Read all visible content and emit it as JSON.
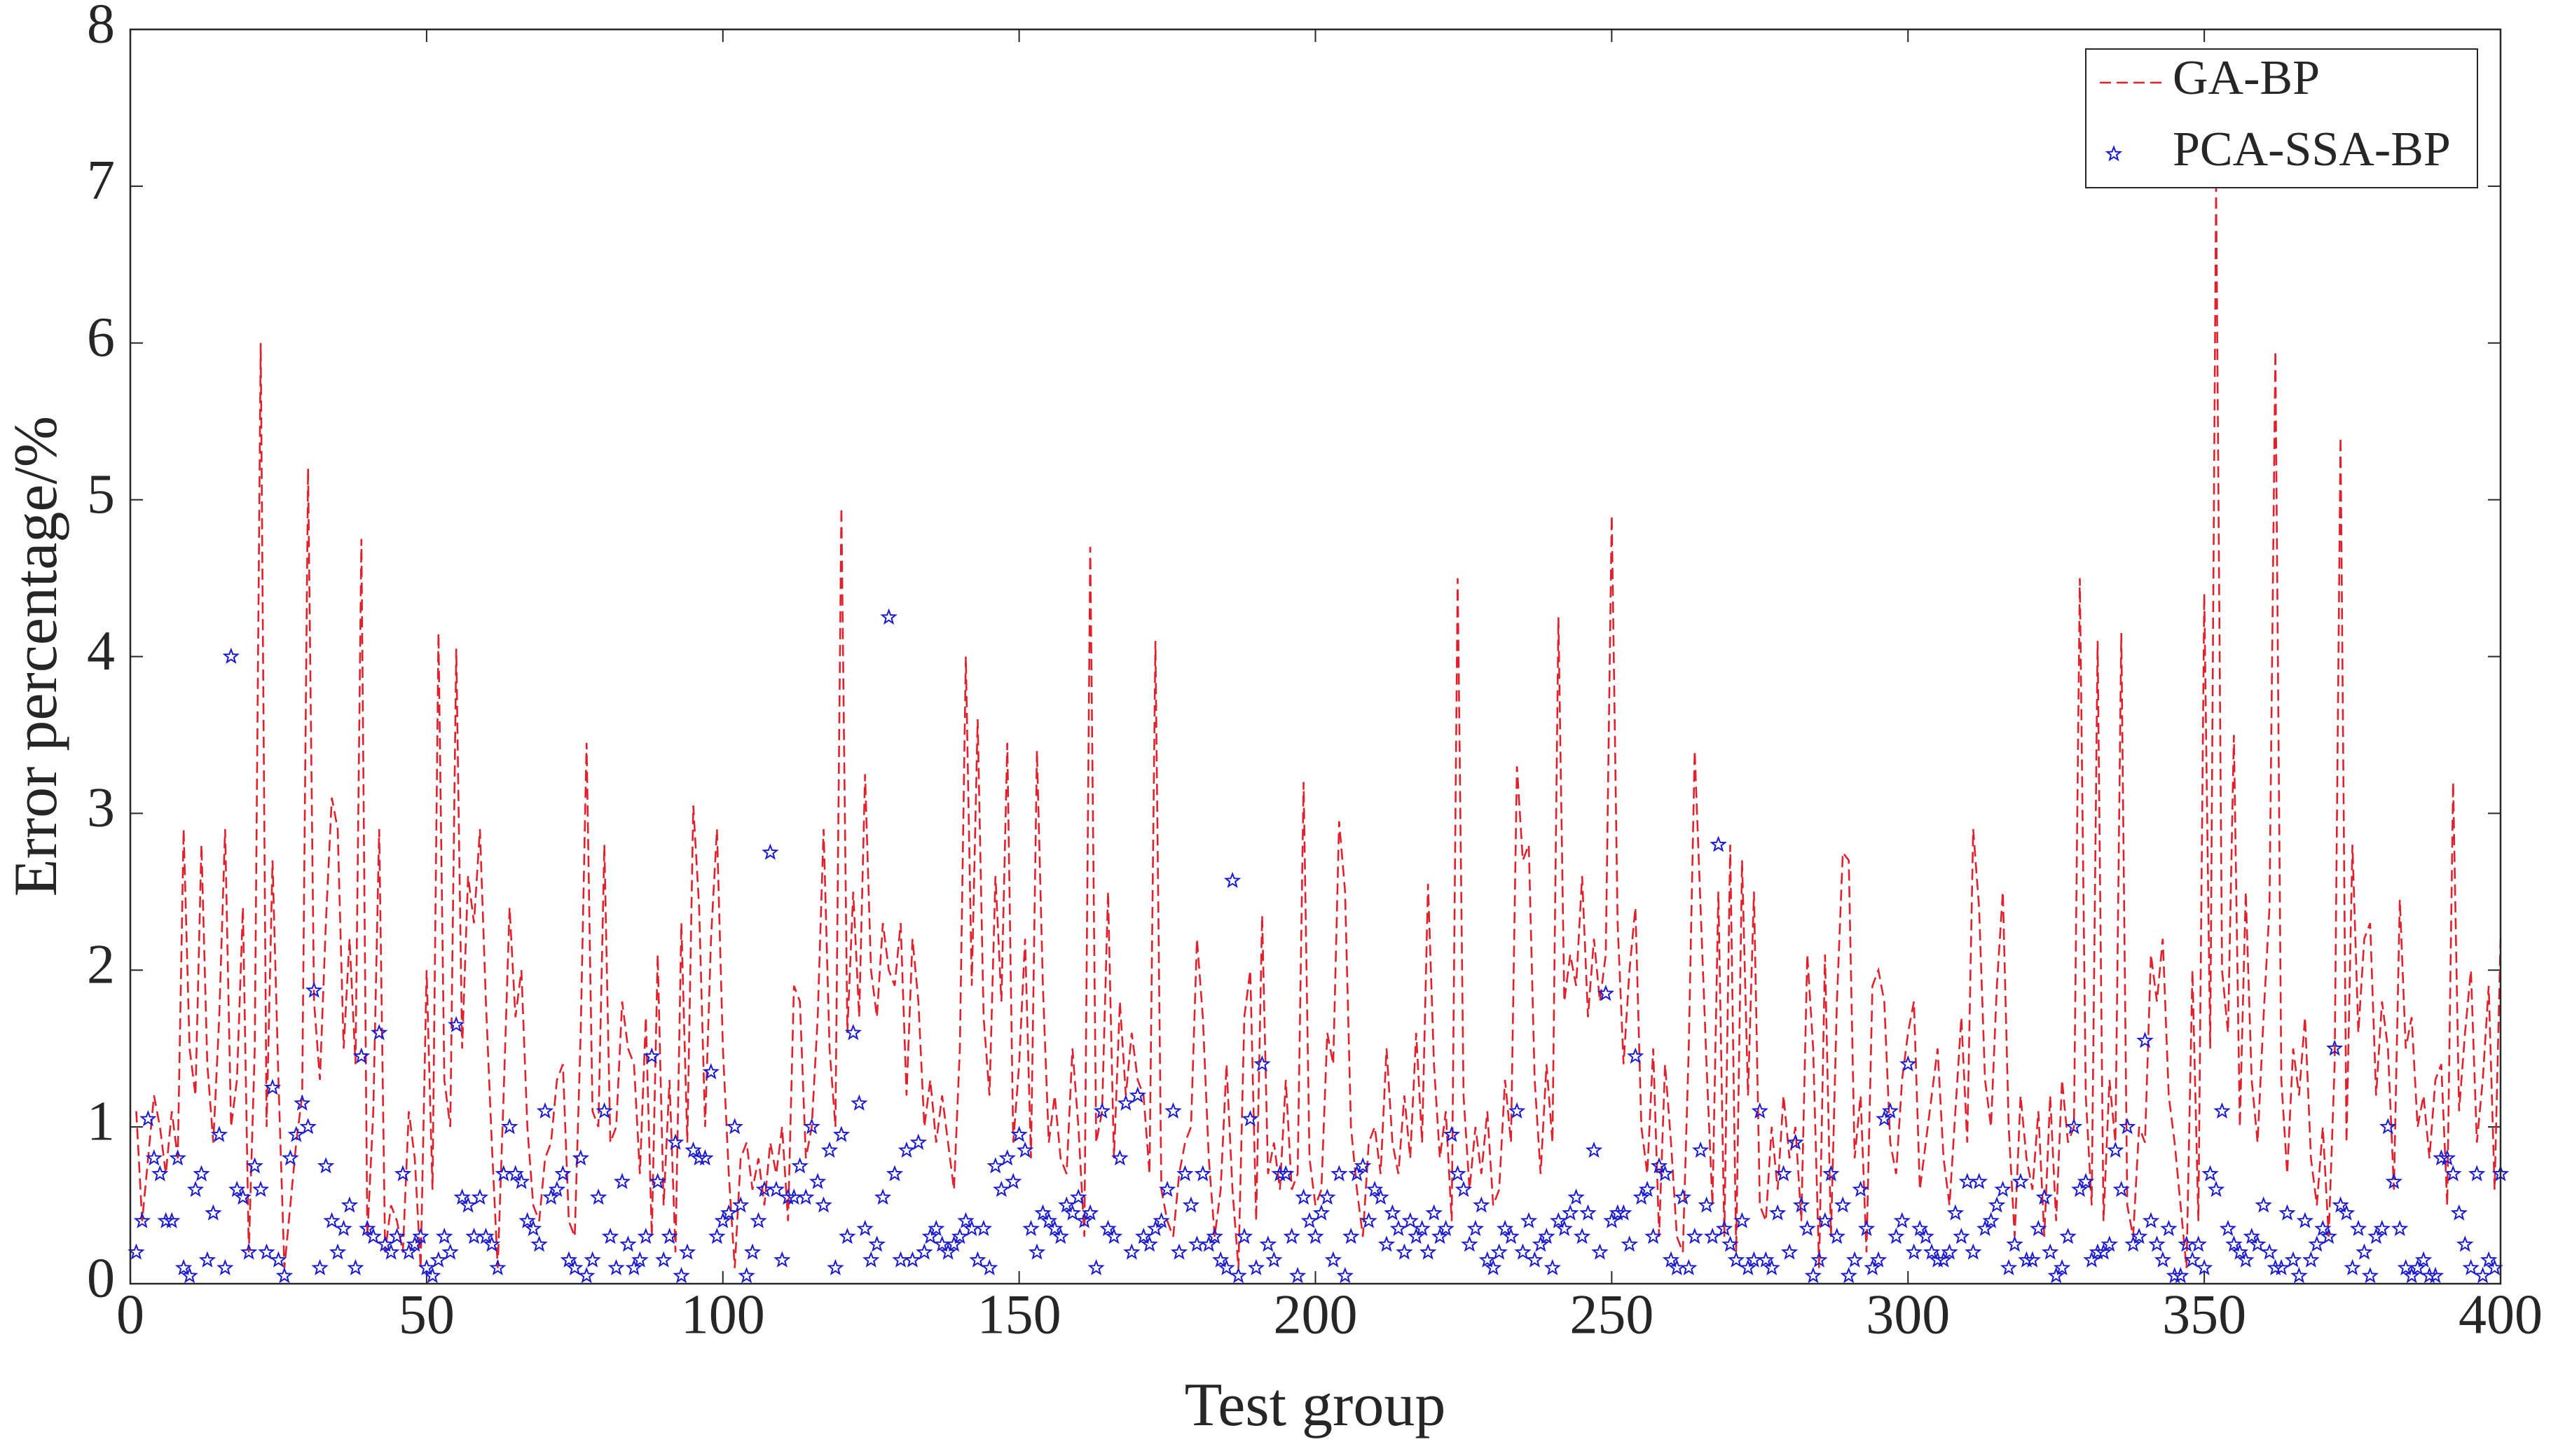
{
  "chart_data": {
    "type": "line",
    "xlabel": "Test group",
    "ylabel": "Error percentage/%",
    "xlim": [
      0,
      400
    ],
    "xticks": [
      0,
      50,
      100,
      150,
      200,
      250,
      300,
      350,
      400
    ],
    "ylim": [
      0,
      8
    ],
    "yticks": [
      0,
      1,
      2,
      3,
      4,
      5,
      6,
      7,
      8
    ],
    "grid": false,
    "legend": "upper right",
    "x": [
      1,
      2,
      3,
      4,
      5,
      6,
      7,
      8,
      9,
      10,
      11,
      12,
      13,
      14,
      15,
      16,
      17,
      18,
      19,
      20,
      21,
      22,
      23,
      24,
      25,
      26,
      27,
      28,
      29,
      30,
      31,
      32,
      33,
      34,
      35,
      36,
      37,
      38,
      39,
      40,
      41,
      42,
      43,
      44,
      45,
      46,
      47,
      48,
      49,
      50,
      51,
      52,
      53,
      54,
      55,
      56,
      57,
      58,
      59,
      60,
      61,
      62,
      63,
      64,
      65,
      66,
      67,
      68,
      69,
      70,
      71,
      72,
      73,
      74,
      75,
      76,
      77,
      78,
      79,
      80,
      81,
      82,
      83,
      84,
      85,
      86,
      87,
      88,
      89,
      90,
      91,
      92,
      93,
      94,
      95,
      96,
      97,
      98,
      99,
      100,
      101,
      102,
      103,
      104,
      105,
      106,
      107,
      108,
      109,
      110,
      111,
      112,
      113,
      114,
      115,
      116,
      117,
      118,
      119,
      120,
      121,
      122,
      123,
      124,
      125,
      126,
      127,
      128,
      129,
      130,
      131,
      132,
      133,
      134,
      135,
      136,
      137,
      138,
      139,
      140,
      141,
      142,
      143,
      144,
      145,
      146,
      147,
      148,
      149,
      150,
      151,
      152,
      153,
      154,
      155,
      156,
      157,
      158,
      159,
      160,
      161,
      162,
      163,
      164,
      165,
      166,
      167,
      168,
      169,
      170,
      171,
      172,
      173,
      174,
      175,
      176,
      177,
      178,
      179,
      180,
      181,
      182,
      183,
      184,
      185,
      186,
      187,
      188,
      189,
      190,
      191,
      192,
      193,
      194,
      195,
      196,
      197,
      198,
      199,
      200,
      201,
      202,
      203,
      204,
      205,
      206,
      207,
      208,
      209,
      210,
      211,
      212,
      213,
      214,
      215,
      216,
      217,
      218,
      219,
      220,
      221,
      222,
      223,
      224,
      225,
      226,
      227,
      228,
      229,
      230,
      231,
      232,
      233,
      234,
      235,
      236,
      237,
      238,
      239,
      240,
      241,
      242,
      243,
      244,
      245,
      246,
      247,
      248,
      249,
      250,
      251,
      252,
      253,
      254,
      255,
      256,
      257,
      258,
      259,
      260,
      261,
      262,
      263,
      264,
      265,
      266,
      267,
      268,
      269,
      270,
      271,
      272,
      273,
      274,
      275,
      276,
      277,
      278,
      279,
      280,
      281,
      282,
      283,
      284,
      285,
      286,
      287,
      288,
      289,
      290,
      291,
      292,
      293,
      294,
      295,
      296,
      297,
      298,
      299,
      300,
      301,
      302,
      303,
      304,
      305,
      306,
      307,
      308,
      309,
      310,
      311,
      312,
      313,
      314,
      315,
      316,
      317,
      318,
      319,
      320,
      321,
      322,
      323,
      324,
      325,
      326,
      327,
      328,
      329,
      330,
      331,
      332,
      333,
      334,
      335,
      336,
      337,
      338,
      339,
      340,
      341,
      342,
      343,
      344,
      345,
      346,
      347,
      348,
      349,
      350,
      351,
      352,
      353,
      354,
      355,
      356,
      357,
      358,
      359,
      360,
      361,
      362,
      363,
      364,
      365,
      366,
      367,
      368,
      369,
      370,
      371,
      372,
      373,
      374,
      375,
      376,
      377,
      378,
      379,
      380,
      381,
      382,
      383,
      384,
      385,
      386,
      387,
      388,
      389,
      390,
      391,
      392,
      393,
      394,
      395,
      396,
      397,
      398,
      399,
      400
    ],
    "series": [
      {
        "name": "GA-BP",
        "color": "#e0202a",
        "linestyle": "dashed",
        "marker": "none",
        "values": [
          1.1,
          0.4,
          0.8,
          1.2,
          1.0,
          0.7,
          1.1,
          0.8,
          2.9,
          1.5,
          1.2,
          2.8,
          1.4,
          0.9,
          1.7,
          2.9,
          1.0,
          1.3,
          2.4,
          0.2,
          1.5,
          6.0,
          1.0,
          2.7,
          1.3,
          0.1,
          0.5,
          0.9,
          1.2,
          5.2,
          1.8,
          1.3,
          2.3,
          3.1,
          2.9,
          1.5,
          2.2,
          1.4,
          4.75,
          0.3,
          1.1,
          2.9,
          0.2,
          0.5,
          0.4,
          0.2,
          1.1,
          0.8,
          0.1,
          2.0,
          0.6,
          4.15,
          1.3,
          1.0,
          4.05,
          1.5,
          2.6,
          2.3,
          2.9,
          1.8,
          0.9,
          0.1,
          1.2,
          2.4,
          1.7,
          2.0,
          1.0,
          0.5,
          0.4,
          0.8,
          0.9,
          1.3,
          1.4,
          0.4,
          0.3,
          1.6,
          3.45,
          1.1,
          1.0,
          2.8,
          0.9,
          1.0,
          1.8,
          1.5,
          1.4,
          0.7,
          1.7,
          0.3,
          2.1,
          0.5,
          1.3,
          0.2,
          2.3,
          0.9,
          3.05,
          2.4,
          1.0,
          2.2,
          2.9,
          1.5,
          0.7,
          0.1,
          0.8,
          0.9,
          0.6,
          0.8,
          0.5,
          0.9,
          0.7,
          1.0,
          0.4,
          1.9,
          1.8,
          0.8,
          1.0,
          1.7,
          2.9,
          1.5,
          1.0,
          4.95,
          1.6,
          2.5,
          1.7,
          3.25,
          2.0,
          1.7,
          2.3,
          2.0,
          1.9,
          2.3,
          1.2,
          2.2,
          1.8,
          1.0,
          1.3,
          0.9,
          1.2,
          0.9,
          0.6,
          1.5,
          4.0,
          1.9,
          3.6,
          1.7,
          1.2,
          2.6,
          1.8,
          3.45,
          0.9,
          1.4,
          2.2,
          0.8,
          3.4,
          1.9,
          0.9,
          1.2,
          0.8,
          0.7,
          1.5,
          1.0,
          0.3,
          4.7,
          0.9,
          1.1,
          2.5,
          0.8,
          1.8,
          1.2,
          1.6,
          1.3,
          1.2,
          0.7,
          4.1,
          0.6,
          0.4,
          0.3,
          0.7,
          0.9,
          1.0,
          2.2,
          1.7,
          0.8,
          0.3,
          0.6,
          1.4,
          0.6,
          0.1,
          1.7,
          2.0,
          0.4,
          2.35,
          0.7,
          0.9,
          0.6,
          1.3,
          0.6,
          0.7,
          3.2,
          0.8,
          0.5,
          0.6,
          1.6,
          1.4,
          2.95,
          2.5,
          1.0,
          0.6,
          0.3,
          0.9,
          1.0,
          0.7,
          1.5,
          0.9,
          0.7,
          1.2,
          0.8,
          1.6,
          0.9,
          2.55,
          1.4,
          0.8,
          1.1,
          0.4,
          4.5,
          1.2,
          0.6,
          1.0,
          0.7,
          1.1,
          0.5,
          0.6,
          1.3,
          0.9,
          3.3,
          2.7,
          2.8,
          1.3,
          0.7,
          1.4,
          0.9,
          4.25,
          1.8,
          2.1,
          1.9,
          2.6,
          1.7,
          2.2,
          1.8,
          2.1,
          4.9,
          2.3,
          1.4,
          2.0,
          2.4,
          1.0,
          0.7,
          1.5,
          0.3,
          1.4,
          0.9,
          0.3,
          0.2,
          1.5,
          3.4,
          2.4,
          1.4,
          0.5,
          2.5,
          0.3,
          2.8,
          0.2,
          2.7,
          1.2,
          2.5,
          0.5,
          0.4,
          1.0,
          0.6,
          1.2,
          0.8,
          1.0,
          0.4,
          2.1,
          1.5,
          0.1,
          2.1,
          0.3,
          1.8,
          2.75,
          2.7,
          0.8,
          1.2,
          0.2,
          1.9,
          2.0,
          1.8,
          0.9,
          0.7,
          1.3,
          1.6,
          1.8,
          0.6,
          0.9,
          1.2,
          1.5,
          0.8,
          0.5,
          1.1,
          1.7,
          0.9,
          2.9,
          2.4,
          1.3,
          1.0,
          1.9,
          2.5,
          1.0,
          0.3,
          1.2,
          0.8,
          0.6,
          1.1,
          0.3,
          1.2,
          0.4,
          1.3,
          0.9,
          1.0,
          4.5,
          1.2,
          0.5,
          4.1,
          0.4,
          1.3,
          0.9,
          4.15,
          0.5,
          0.3,
          1.0,
          0.9,
          2.1,
          1.8,
          2.2,
          1.2,
          0.9,
          0.5,
          0.1,
          2.0,
          0.4,
          4.4,
          1.5,
          7.0,
          2.0,
          1.6,
          3.5,
          1.0,
          2.5,
          1.3,
          0.9,
          1.7,
          2.4,
          5.95,
          1.3,
          0.7,
          1.5,
          1.2,
          1.7,
          0.8,
          0.5,
          1.0,
          0.3,
          1.4,
          5.4,
          0.9,
          2.8,
          1.6,
          2.2,
          2.3,
          1.2,
          1.8,
          1.5,
          0.6,
          2.45,
          1.5,
          1.7,
          1.0,
          1.2,
          0.8,
          1.3,
          1.4,
          0.5,
          3.2,
          1.1,
          1.6,
          2.0,
          0.9,
          1.3,
          1.9,
          0.6,
          2.2
        ]
      },
      {
        "name": "PCA-SSA-BP",
        "color": "#1a1ad0",
        "linestyle": "none",
        "marker": "star",
        "values": [
          0.2,
          0.4,
          1.05,
          0.8,
          0.7,
          0.4,
          0.4,
          0.8,
          0.1,
          0.05,
          0.6,
          0.7,
          0.15,
          0.45,
          0.95,
          0.1,
          4.0,
          0.6,
          0.55,
          0.2,
          0.75,
          0.6,
          0.2,
          1.25,
          0.15,
          0.05,
          0.8,
          0.95,
          1.15,
          1.0,
          1.87,
          0.1,
          0.75,
          0.4,
          0.2,
          0.35,
          0.5,
          0.1,
          1.45,
          0.35,
          0.3,
          1.6,
          0.25,
          0.2,
          0.3,
          0.7,
          0.2,
          0.25,
          0.3,
          0.1,
          0.05,
          0.15,
          0.3,
          0.2,
          1.65,
          0.55,
          0.5,
          0.3,
          0.55,
          0.3,
          0.25,
          0.1,
          0.7,
          1.0,
          0.7,
          0.65,
          0.4,
          0.35,
          0.25,
          1.1,
          0.55,
          0.6,
          0.7,
          0.15,
          0.1,
          0.8,
          0.05,
          0.15,
          0.55,
          1.1,
          0.3,
          0.1,
          0.65,
          0.25,
          0.1,
          0.15,
          0.3,
          1.45,
          0.65,
          0.15,
          0.3,
          0.9,
          0.05,
          0.2,
          0.85,
          0.8,
          0.8,
          1.35,
          0.3,
          0.4,
          0.45,
          1.0,
          0.5,
          0.05,
          0.2,
          0.4,
          0.6,
          2.75,
          0.6,
          0.15,
          0.55,
          0.55,
          0.75,
          0.55,
          1.0,
          0.65,
          0.5,
          0.85,
          0.1,
          0.95,
          0.3,
          1.6,
          1.15,
          0.35,
          0.15,
          0.25,
          0.55,
          4.25,
          0.7,
          0.15,
          0.85,
          0.15,
          0.9,
          0.2,
          0.3,
          0.35,
          0.25,
          0.2,
          0.25,
          0.3,
          0.4,
          0.35,
          0.15,
          0.35,
          0.1,
          0.75,
          0.6,
          0.8,
          0.65,
          0.95,
          0.85,
          0.35,
          0.2,
          0.45,
          0.4,
          0.35,
          0.3,
          0.5,
          0.45,
          0.55,
          0.4,
          0.45,
          0.1,
          1.1,
          0.35,
          0.3,
          0.8,
          1.15,
          0.2,
          1.2,
          0.3,
          0.25,
          0.35,
          0.4,
          0.6,
          1.1,
          0.2,
          0.7,
          0.5,
          0.25,
          0.7,
          0.25,
          0.3,
          0.15,
          0.1,
          2.57,
          0.05,
          0.3,
          1.05,
          0.1,
          1.4,
          0.25,
          0.15,
          0.7,
          0.7,
          0.3,
          0.05,
          0.55,
          0.4,
          0.3,
          0.45,
          0.55,
          0.15,
          0.7,
          0.05,
          0.3,
          0.7,
          0.75,
          0.4,
          0.6,
          0.55,
          0.25,
          0.45,
          0.35,
          0.2,
          0.4,
          0.3,
          0.35,
          0.2,
          0.45,
          0.3,
          0.35,
          0.95,
          0.7,
          0.6,
          0.25,
          0.35,
          0.5,
          0.15,
          0.1,
          0.2,
          0.35,
          0.3,
          1.1,
          0.2,
          0.4,
          0.15,
          0.25,
          0.3,
          0.1,
          0.4,
          0.35,
          0.45,
          0.55,
          0.3,
          0.45,
          0.85,
          0.2,
          1.85,
          0.4,
          0.45,
          0.45,
          0.25,
          1.45,
          0.55,
          0.6,
          0.3,
          0.75,
          0.7,
          0.15,
          0.1,
          0.55,
          0.1,
          0.3,
          0.85,
          0.5,
          0.3,
          2.8,
          0.35,
          0.25,
          0.15,
          0.4,
          0.1,
          0.15,
          1.1,
          0.15,
          0.1,
          0.45,
          0.7,
          0.2,
          0.9,
          0.5,
          0.35,
          0.05,
          0.15,
          0.4,
          0.7,
          0.3,
          0.5,
          0.05,
          0.15,
          0.6,
          0.35,
          0.1,
          0.15,
          1.05,
          1.1,
          0.3,
          0.4,
          1.4,
          0.2,
          0.35,
          0.3,
          0.2,
          0.15,
          0.15,
          0.2,
          0.45,
          0.3,
          0.65,
          0.2,
          0.65,
          0.35,
          0.4,
          0.5,
          0.6,
          0.1,
          0.25,
          0.65,
          0.15,
          0.15,
          0.35,
          0.55,
          0.2,
          0.05,
          0.1,
          0.3,
          1.0,
          0.6,
          0.65,
          0.15,
          0.2,
          0.2,
          0.25,
          0.85,
          0.6,
          1.0,
          0.25,
          0.3,
          1.55,
          0.4,
          0.25,
          0.15,
          0.35,
          0.05,
          0.05,
          0.25,
          0.15,
          0.25,
          0.1,
          0.7,
          0.6,
          1.1,
          0.35,
          0.25,
          0.2,
          0.15,
          0.3,
          0.25,
          0.5,
          0.2,
          0.1,
          0.1,
          0.45,
          0.15,
          0.05,
          0.4,
          0.15,
          0.25,
          0.35,
          0.3,
          1.5,
          0.5,
          0.45,
          0.1,
          0.35,
          0.2,
          0.05,
          0.3,
          0.35,
          1.0,
          0.65,
          0.35,
          0.1,
          0.05,
          0.1,
          0.15,
          0.05,
          0.05,
          0.8,
          0.8,
          0.7,
          0.45,
          0.25,
          0.1,
          0.7,
          0.05,
          0.15,
          0.1,
          0.7
        ]
      }
    ]
  }
}
